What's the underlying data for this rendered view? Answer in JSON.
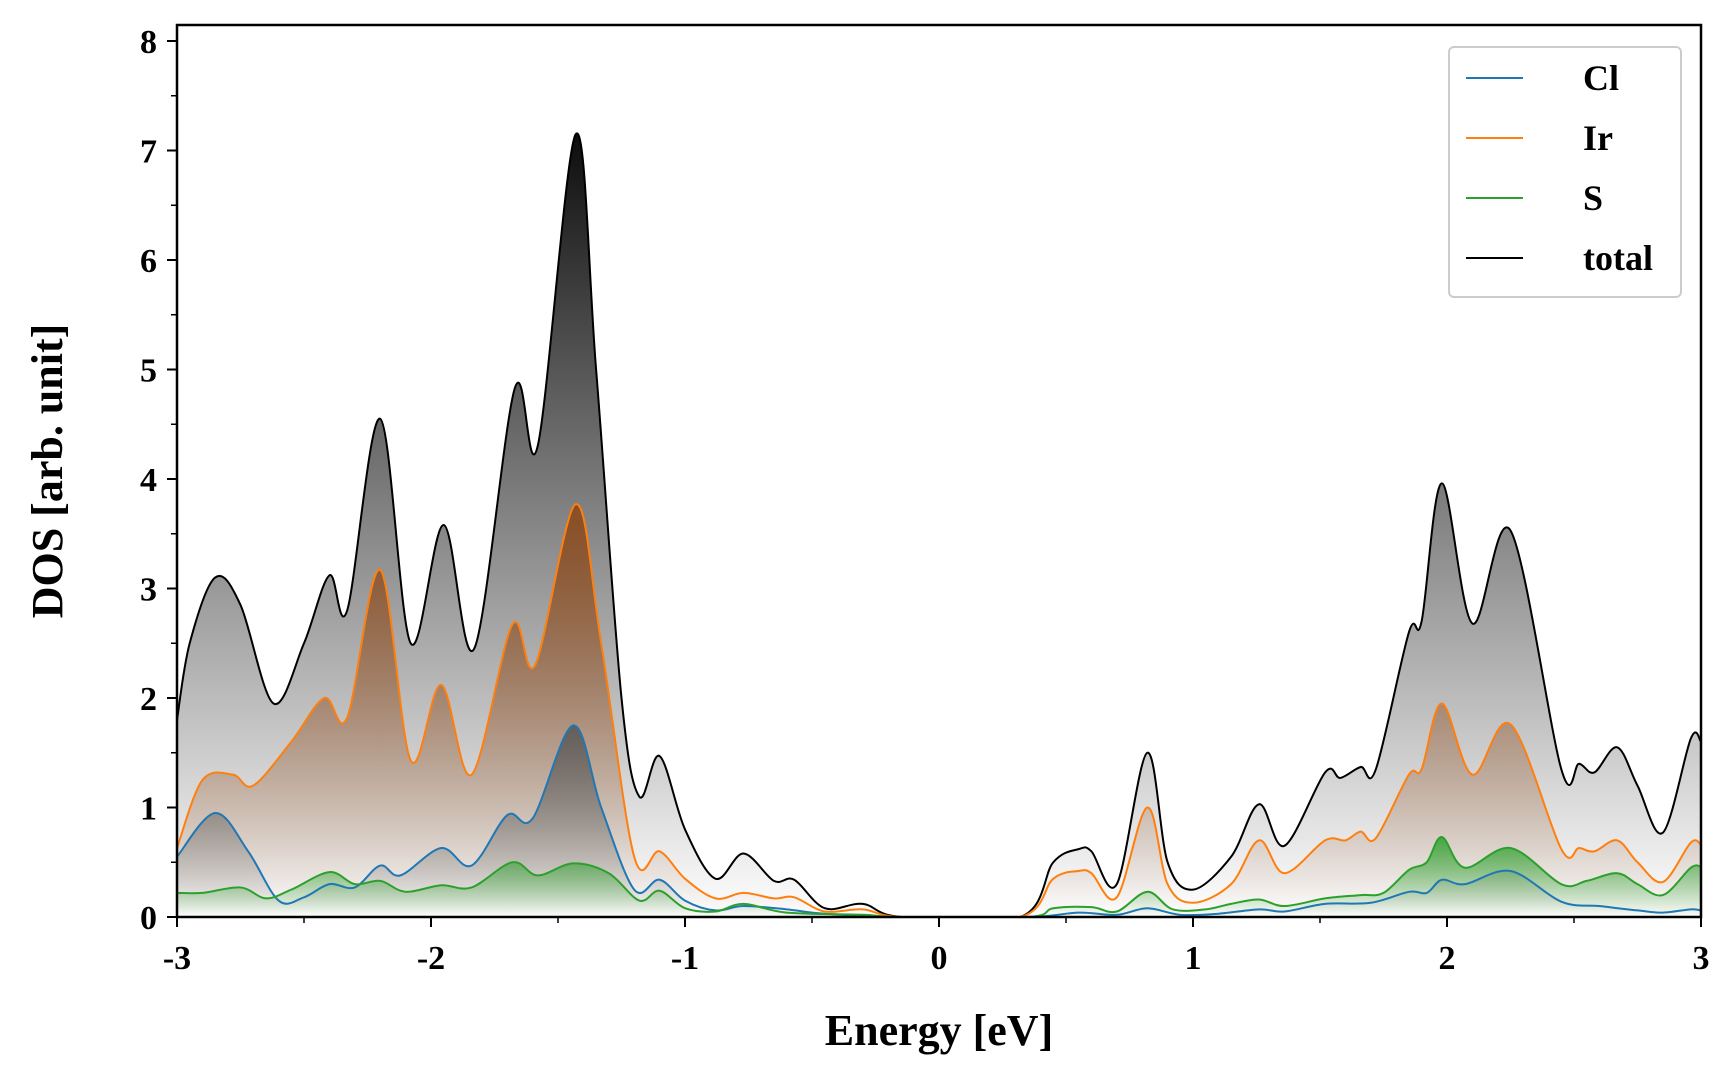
{
  "chart_data": {
    "type": "area",
    "xlabel": "Energy [eV]",
    "ylabel": "DOS [arb. unit]",
    "xlim": [
      -3,
      3
    ],
    "ylim": [
      0,
      8
    ],
    "xticks": [
      "-3",
      "-2",
      "-1",
      "0",
      "1",
      "2",
      "3"
    ],
    "yticks": [
      "0",
      "1",
      "2",
      "3",
      "4",
      "5",
      "6",
      "7",
      "8"
    ],
    "legend_position": "top-right",
    "grid": false,
    "series": [
      {
        "name": "total",
        "color": "#000000",
        "fill": "#000000",
        "points": [
          [
            -3,
            1.8
          ],
          [
            -2.95,
            2.5
          ],
          [
            -2.85,
            3.1
          ],
          [
            -2.75,
            2.85
          ],
          [
            -2.62,
            1.95
          ],
          [
            -2.5,
            2.5
          ],
          [
            -2.4,
            3.12
          ],
          [
            -2.33,
            2.8
          ],
          [
            -2.2,
            4.55
          ],
          [
            -2.08,
            2.5
          ],
          [
            -1.95,
            3.58
          ],
          [
            -1.83,
            2.45
          ],
          [
            -1.67,
            4.83
          ],
          [
            -1.58,
            4.3
          ],
          [
            -1.43,
            7.15
          ],
          [
            -1.35,
            5.0
          ],
          [
            -1.25,
            2.0
          ],
          [
            -1.18,
            1.1
          ],
          [
            -1.1,
            1.47
          ],
          [
            -1.0,
            0.8
          ],
          [
            -0.88,
            0.35
          ],
          [
            -0.77,
            0.58
          ],
          [
            -0.65,
            0.33
          ],
          [
            -0.57,
            0.34
          ],
          [
            -0.45,
            0.08
          ],
          [
            -0.3,
            0.12
          ],
          [
            -0.15,
            0
          ],
          [
            0.32,
            0
          ],
          [
            0.45,
            0.5
          ],
          [
            0.55,
            0.62
          ],
          [
            0.6,
            0.6
          ],
          [
            0.7,
            0.3
          ],
          [
            0.82,
            1.5
          ],
          [
            0.9,
            0.5
          ],
          [
            1.0,
            0.25
          ],
          [
            1.15,
            0.55
          ],
          [
            1.26,
            1.03
          ],
          [
            1.36,
            0.65
          ],
          [
            1.52,
            1.32
          ],
          [
            1.58,
            1.27
          ],
          [
            1.66,
            1.37
          ],
          [
            1.72,
            1.35
          ],
          [
            1.85,
            2.6
          ],
          [
            1.9,
            2.7
          ],
          [
            1.98,
            3.96
          ],
          [
            2.1,
            2.68
          ],
          [
            2.25,
            3.53
          ],
          [
            2.45,
            1.35
          ],
          [
            2.52,
            1.4
          ],
          [
            2.58,
            1.32
          ],
          [
            2.67,
            1.55
          ],
          [
            2.75,
            1.2
          ],
          [
            2.85,
            0.77
          ],
          [
            2.96,
            1.63
          ],
          [
            3,
            1.6
          ]
        ]
      },
      {
        "name": "Ir",
        "color": "#ff7f0e",
        "fill": "#8b4513",
        "points": [
          [
            -3,
            0.63
          ],
          [
            -2.9,
            1.25
          ],
          [
            -2.78,
            1.3
          ],
          [
            -2.7,
            1.2
          ],
          [
            -2.55,
            1.6
          ],
          [
            -2.42,
            2.0
          ],
          [
            -2.33,
            1.82
          ],
          [
            -2.2,
            3.17
          ],
          [
            -2.08,
            1.43
          ],
          [
            -1.96,
            2.12
          ],
          [
            -1.84,
            1.3
          ],
          [
            -1.68,
            2.67
          ],
          [
            -1.59,
            2.3
          ],
          [
            -1.43,
            3.77
          ],
          [
            -1.33,
            2.5
          ],
          [
            -1.2,
            0.55
          ],
          [
            -1.1,
            0.6
          ],
          [
            -1.0,
            0.35
          ],
          [
            -0.88,
            0.17
          ],
          [
            -0.77,
            0.22
          ],
          [
            -0.65,
            0.17
          ],
          [
            -0.57,
            0.18
          ],
          [
            -0.45,
            0.05
          ],
          [
            -0.3,
            0.07
          ],
          [
            -0.15,
            0
          ],
          [
            0.32,
            0
          ],
          [
            0.45,
            0.35
          ],
          [
            0.55,
            0.42
          ],
          [
            0.6,
            0.4
          ],
          [
            0.7,
            0.18
          ],
          [
            0.82,
            1.0
          ],
          [
            0.9,
            0.3
          ],
          [
            1.0,
            0.13
          ],
          [
            1.15,
            0.3
          ],
          [
            1.26,
            0.7
          ],
          [
            1.36,
            0.4
          ],
          [
            1.52,
            0.7
          ],
          [
            1.6,
            0.7
          ],
          [
            1.66,
            0.78
          ],
          [
            1.72,
            0.72
          ],
          [
            1.85,
            1.3
          ],
          [
            1.9,
            1.35
          ],
          [
            1.98,
            1.95
          ],
          [
            2.1,
            1.3
          ],
          [
            2.25,
            1.76
          ],
          [
            2.45,
            0.62
          ],
          [
            2.52,
            0.63
          ],
          [
            2.58,
            0.6
          ],
          [
            2.67,
            0.7
          ],
          [
            2.75,
            0.5
          ],
          [
            2.85,
            0.32
          ],
          [
            2.96,
            0.68
          ],
          [
            3,
            0.66
          ]
        ]
      },
      {
        "name": "Cl",
        "color": "#1f77b4",
        "fill": "#555555",
        "points": [
          [
            -3,
            0.55
          ],
          [
            -2.85,
            0.95
          ],
          [
            -2.72,
            0.6
          ],
          [
            -2.6,
            0.15
          ],
          [
            -2.5,
            0.18
          ],
          [
            -2.4,
            0.3
          ],
          [
            -2.3,
            0.27
          ],
          [
            -2.2,
            0.47
          ],
          [
            -2.12,
            0.38
          ],
          [
            -1.96,
            0.63
          ],
          [
            -1.84,
            0.47
          ],
          [
            -1.7,
            0.93
          ],
          [
            -1.6,
            0.9
          ],
          [
            -1.44,
            1.75
          ],
          [
            -1.33,
            1.0
          ],
          [
            -1.2,
            0.25
          ],
          [
            -1.1,
            0.34
          ],
          [
            -1.0,
            0.15
          ],
          [
            -0.88,
            0.06
          ],
          [
            -0.77,
            0.1
          ],
          [
            -0.6,
            0.07
          ],
          [
            -0.45,
            0.03
          ],
          [
            -0.15,
            0
          ],
          [
            0.35,
            0
          ],
          [
            0.55,
            0.04
          ],
          [
            0.7,
            0.02
          ],
          [
            0.82,
            0.08
          ],
          [
            0.95,
            0.02
          ],
          [
            1.1,
            0.03
          ],
          [
            1.26,
            0.07
          ],
          [
            1.36,
            0.05
          ],
          [
            1.52,
            0.12
          ],
          [
            1.7,
            0.13
          ],
          [
            1.85,
            0.23
          ],
          [
            1.92,
            0.22
          ],
          [
            1.98,
            0.34
          ],
          [
            2.07,
            0.3
          ],
          [
            2.25,
            0.42
          ],
          [
            2.45,
            0.14
          ],
          [
            2.6,
            0.1
          ],
          [
            2.75,
            0.06
          ],
          [
            2.85,
            0.04
          ],
          [
            2.96,
            0.07
          ],
          [
            3,
            0.06
          ]
        ]
      },
      {
        "name": "S",
        "color": "#2ca02c",
        "fill": "#2ca02c",
        "points": [
          [
            -3,
            0.22
          ],
          [
            -2.9,
            0.22
          ],
          [
            -2.75,
            0.27
          ],
          [
            -2.65,
            0.17
          ],
          [
            -2.55,
            0.25
          ],
          [
            -2.4,
            0.41
          ],
          [
            -2.3,
            0.3
          ],
          [
            -2.2,
            0.33
          ],
          [
            -2.1,
            0.23
          ],
          [
            -1.96,
            0.29
          ],
          [
            -1.84,
            0.27
          ],
          [
            -1.68,
            0.5
          ],
          [
            -1.58,
            0.38
          ],
          [
            -1.44,
            0.49
          ],
          [
            -1.3,
            0.4
          ],
          [
            -1.18,
            0.15
          ],
          [
            -1.1,
            0.24
          ],
          [
            -1.0,
            0.08
          ],
          [
            -0.88,
            0.05
          ],
          [
            -0.77,
            0.12
          ],
          [
            -0.6,
            0.04
          ],
          [
            -0.3,
            0.02
          ],
          [
            -0.15,
            0
          ],
          [
            0.35,
            0
          ],
          [
            0.45,
            0.08
          ],
          [
            0.6,
            0.09
          ],
          [
            0.7,
            0.05
          ],
          [
            0.82,
            0.23
          ],
          [
            0.92,
            0.07
          ],
          [
            1.05,
            0.07
          ],
          [
            1.15,
            0.12
          ],
          [
            1.26,
            0.16
          ],
          [
            1.36,
            0.1
          ],
          [
            1.52,
            0.17
          ],
          [
            1.66,
            0.2
          ],
          [
            1.75,
            0.22
          ],
          [
            1.85,
            0.43
          ],
          [
            1.92,
            0.5
          ],
          [
            1.98,
            0.73
          ],
          [
            2.07,
            0.45
          ],
          [
            2.25,
            0.63
          ],
          [
            2.45,
            0.3
          ],
          [
            2.55,
            0.33
          ],
          [
            2.67,
            0.4
          ],
          [
            2.75,
            0.3
          ],
          [
            2.85,
            0.2
          ],
          [
            2.96,
            0.45
          ],
          [
            3,
            0.46
          ]
        ]
      }
    ],
    "legend": [
      "Cl",
      "Ir",
      "S",
      "total"
    ]
  }
}
